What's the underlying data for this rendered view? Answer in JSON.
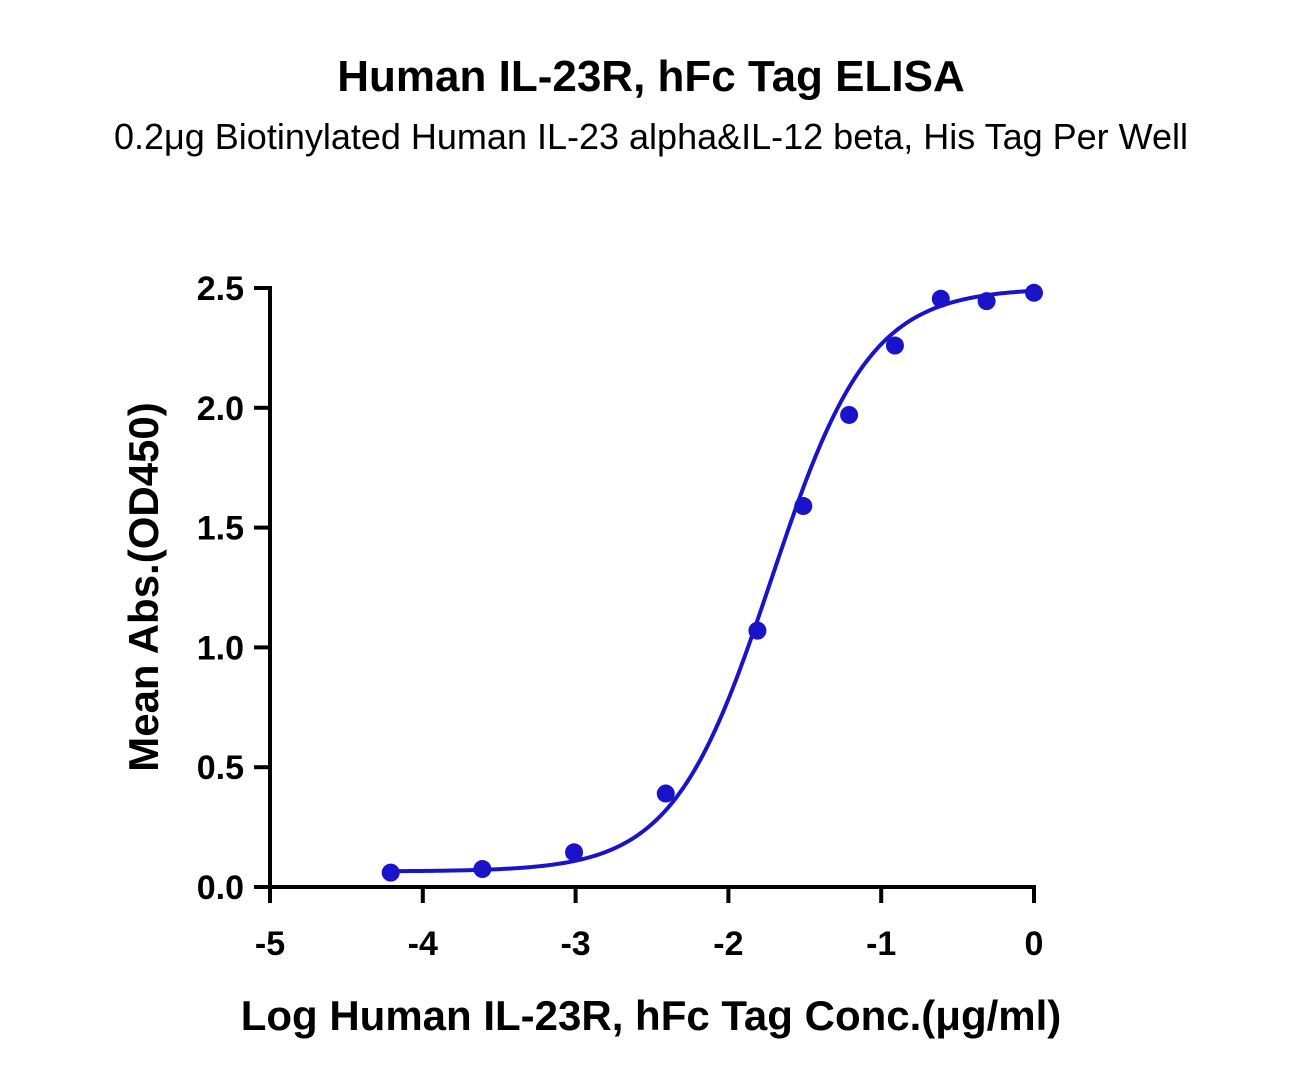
{
  "chart_data": {
    "type": "scatter",
    "title": "Human IL-23R, hFc Tag ELISA",
    "subtitle": "0.2μg Biotinylated Human IL-23 alpha&IL-12 beta, His Tag Per Well",
    "xlabel": "Log Human IL-23R, hFc Tag Conc.(μg/ml)",
    "ylabel": "Mean Abs.(OD450)",
    "xlim": [
      -5,
      0
    ],
    "ylim": [
      0,
      2.5
    ],
    "x_ticks": [
      -5,
      -4,
      -3,
      -2,
      -1,
      0
    ],
    "x_tick_labels": [
      "-5",
      "-4",
      "-3",
      "-2",
      "-1",
      "0"
    ],
    "y_ticks": [
      0,
      0.5,
      1.0,
      1.5,
      2.0,
      2.5
    ],
    "y_tick_labels": [
      "0.0",
      "0.5",
      "1.0",
      "1.5",
      "2.0",
      "2.5"
    ],
    "grid": false,
    "series": [
      {
        "color": "#1a14c8",
        "x": [
          -4.21,
          -3.61,
          -3.01,
          -2.41,
          -1.81,
          -1.51,
          -1.21,
          -0.91,
          -0.61,
          -0.31,
          0.0
        ],
        "y": [
          0.06,
          0.075,
          0.145,
          0.39,
          1.07,
          1.59,
          1.97,
          2.26,
          2.455,
          2.445,
          2.48
        ],
        "fit": {
          "model": "4PL",
          "bottom": 0.065,
          "top": 2.5,
          "logEC50": -1.72,
          "hill": 1.35
        }
      }
    ]
  }
}
